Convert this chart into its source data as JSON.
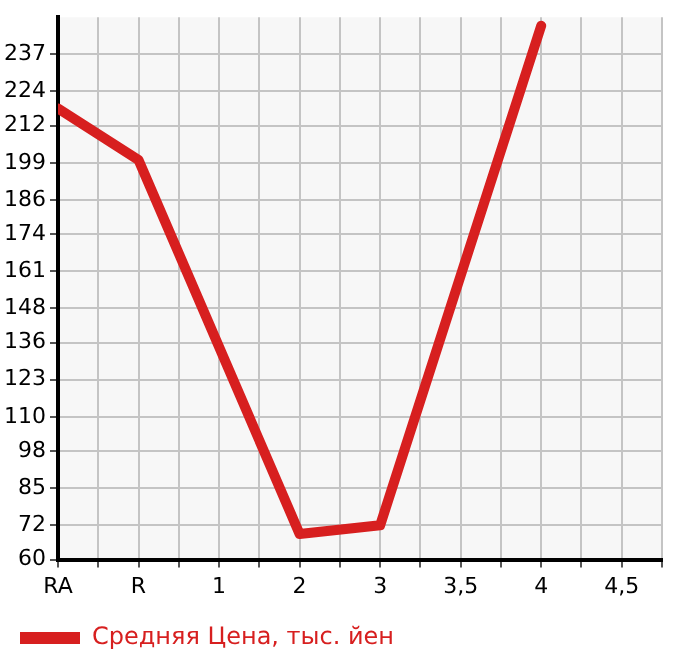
{
  "chart_data": {
    "type": "line",
    "categories": [
      "RA",
      "R",
      "1",
      "2",
      "3",
      "3,5",
      "4",
      "4,5"
    ],
    "series": [
      {
        "name": "Средняя Цена, тыс. йен",
        "color": "#d71f1f",
        "values": [
          218,
          200,
          null,
          69,
          72,
          null,
          247,
          null
        ]
      }
    ],
    "ylim": [
      60,
      250
    ],
    "yticks": [
      60,
      72,
      85,
      98,
      110,
      123,
      136,
      148,
      161,
      174,
      186,
      199,
      212,
      224,
      237
    ],
    "grid": true,
    "legend": "bottom left",
    "marker": "none",
    "line_style": "solid"
  }
}
